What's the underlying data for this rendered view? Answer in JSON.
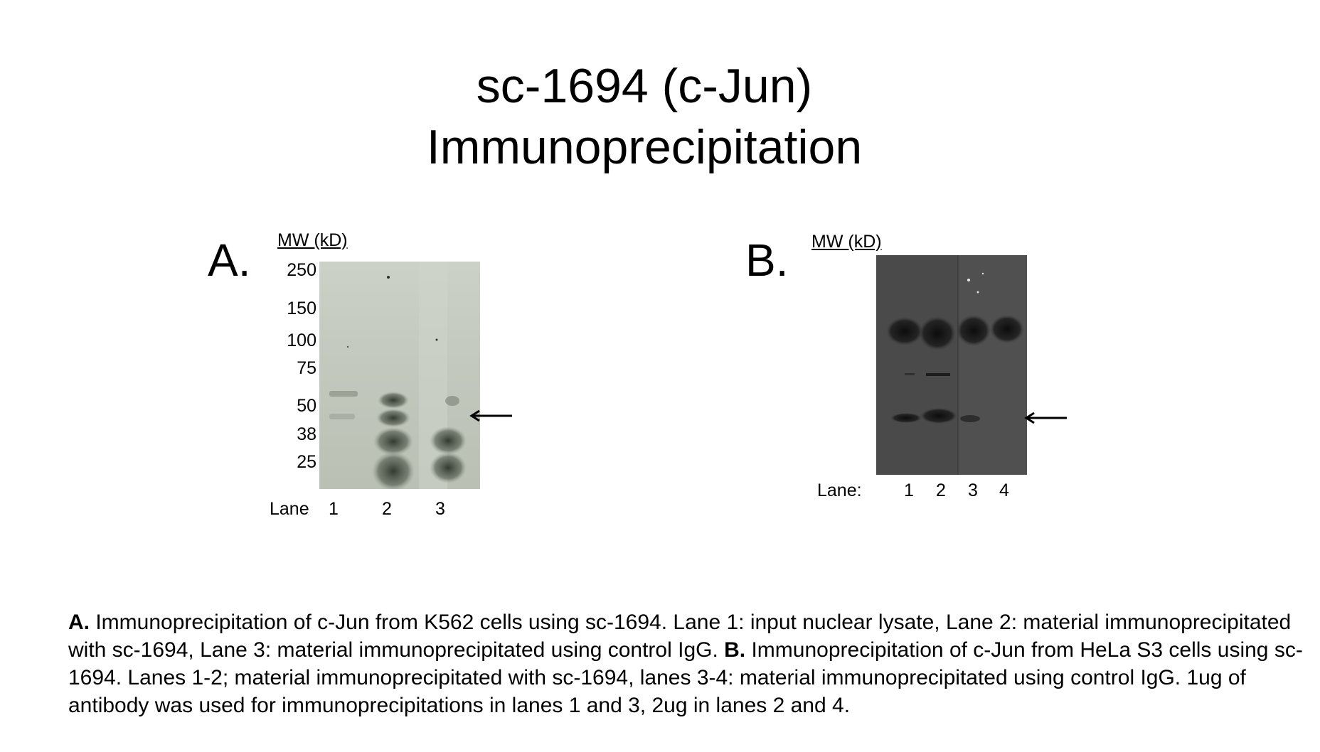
{
  "title": {
    "line1": "sc-1694 (c-Jun)",
    "line2": "Immunoprecipitation"
  },
  "panel_a": {
    "letter": "A.",
    "mw_label": "MW (kD)",
    "ticks": [
      "250",
      "150",
      "100",
      "75",
      "50",
      "38",
      "25"
    ],
    "lane_label": "Lane",
    "lanes": [
      "1",
      "2",
      "3"
    ]
  },
  "panel_b": {
    "letter": "B.",
    "mw_label": "MW (kD)",
    "lane_label": "Lane:",
    "lanes": [
      "1",
      "2",
      "3",
      "4"
    ]
  },
  "caption": {
    "a_label": "A.",
    "a_text": " Immunoprecipitation of c-Jun from K562 cells using sc-1694.  Lane 1: input nuclear lysate, Lane 2:  material immunoprecipitated with sc-1694, Lane 3: material immunoprecipitated using control IgG. ",
    "b_label": "B.",
    "b_text": " Immunoprecipitation of c-Jun from HeLa S3 cells using sc-1694.  Lanes 1-2; material immunoprecipitated with sc-1694, lanes 3-4: material immunoprecipitated using control IgG.  1ug of antibody was used for immunoprecipitations in lanes 1 and 3, 2ug in lanes 2 and 4."
  },
  "colors": {
    "blot_a_background": "#c2c8bc",
    "blot_b_background": "#4a4a4a",
    "text": "#000000"
  }
}
